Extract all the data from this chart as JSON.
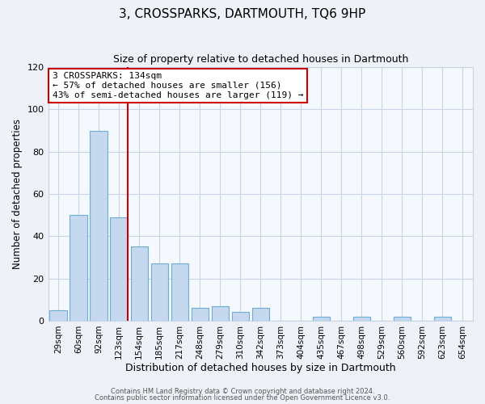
{
  "title": "3, CROSSPARKS, DARTMOUTH, TQ6 9HP",
  "subtitle": "Size of property relative to detached houses in Dartmouth",
  "xlabel": "Distribution of detached houses by size in Dartmouth",
  "ylabel": "Number of detached properties",
  "bar_labels": [
    "29sqm",
    "60sqm",
    "92sqm",
    "123sqm",
    "154sqm",
    "185sqm",
    "217sqm",
    "248sqm",
    "279sqm",
    "310sqm",
    "342sqm",
    "373sqm",
    "404sqm",
    "435sqm",
    "467sqm",
    "498sqm",
    "529sqm",
    "560sqm",
    "592sqm",
    "623sqm",
    "654sqm"
  ],
  "bar_values": [
    5,
    50,
    90,
    49,
    35,
    27,
    27,
    6,
    7,
    4,
    6,
    0,
    0,
    2,
    0,
    2,
    0,
    2,
    0,
    2,
    0
  ],
  "bar_color": "#c5d8ed",
  "bar_edge_color": "#6aadd5",
  "vline_color": "#cc0000",
  "annotation_title": "3 CROSSPARKS: 134sqm",
  "annotation_line1": "← 57% of detached houses are smaller (156)",
  "annotation_line2": "43% of semi-detached houses are larger (119) →",
  "annotation_box_color": "#ffffff",
  "annotation_box_edge": "#cc0000",
  "ylim": [
    0,
    120
  ],
  "yticks": [
    0,
    20,
    40,
    60,
    80,
    100,
    120
  ],
  "footer1": "Contains HM Land Registry data © Crown copyright and database right 2024.",
  "footer2": "Contains public sector information licensed under the Open Government Licence v3.0.",
  "bg_color": "#eef2f8",
  "plot_bg_color": "#f5f8fd",
  "grid_color": "#c8d4e8"
}
